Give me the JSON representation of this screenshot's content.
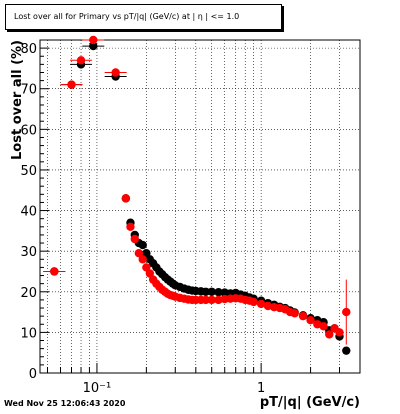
{
  "title": "Lost over all for Primary vs pT/|q| (GeV/c) at | η | <= 1.0",
  "timestamp": "Wed Nov 25 12:06:43 2020",
  "colors": {
    "series_black": "#000000",
    "series_red": "#ff0000",
    "grid": "#000000",
    "frame": "#000000"
  },
  "chart_data": {
    "type": "scatter",
    "xlabel": "pT/|q| (GeV/c)",
    "ylabel": "Lost over all (%)",
    "xscale": "log",
    "xlim": [
      0.045,
      4.0
    ],
    "ylim": [
      0,
      82
    ],
    "xticks": [
      {
        "value": 0.1,
        "label": "10⁻¹"
      },
      {
        "value": 1,
        "label": "1"
      }
    ],
    "yticks": [
      0,
      10,
      20,
      30,
      40,
      50,
      60,
      70,
      80
    ],
    "grid": true,
    "series": [
      {
        "color": "#000000",
        "points": [
          [
            0.055,
            25.0
          ],
          [
            0.07,
            71.0
          ],
          [
            0.08,
            76.0
          ],
          [
            0.095,
            80.5
          ],
          [
            0.13,
            73.0
          ],
          [
            0.15,
            43.0
          ],
          [
            0.16,
            37.0
          ],
          [
            0.17,
            34.0
          ],
          [
            0.18,
            32.0
          ],
          [
            0.19,
            31.5
          ],
          [
            0.2,
            29.5
          ],
          [
            0.21,
            28.0
          ],
          [
            0.22,
            27.0
          ],
          [
            0.23,
            26.0
          ],
          [
            0.24,
            25.0
          ],
          [
            0.25,
            24.3
          ],
          [
            0.26,
            23.6
          ],
          [
            0.27,
            23.0
          ],
          [
            0.28,
            22.5
          ],
          [
            0.29,
            22.0
          ],
          [
            0.3,
            21.6
          ],
          [
            0.32,
            21.2
          ],
          [
            0.34,
            20.8
          ],
          [
            0.36,
            20.5
          ],
          [
            0.38,
            20.3
          ],
          [
            0.4,
            20.2
          ],
          [
            0.43,
            20.1
          ],
          [
            0.46,
            20.0
          ],
          [
            0.5,
            20.0
          ],
          [
            0.55,
            19.9
          ],
          [
            0.6,
            19.8
          ],
          [
            0.65,
            19.6
          ],
          [
            0.7,
            19.7
          ],
          [
            0.75,
            19.3
          ],
          [
            0.8,
            19.0
          ],
          [
            0.85,
            18.6
          ],
          [
            0.9,
            18.3
          ],
          [
            1.0,
            17.8
          ],
          [
            1.1,
            17.2
          ],
          [
            1.2,
            16.8
          ],
          [
            1.3,
            16.3
          ],
          [
            1.4,
            16.0
          ],
          [
            1.5,
            15.4
          ],
          [
            1.6,
            14.9
          ],
          [
            1.8,
            14.2
          ],
          [
            2.0,
            13.5
          ],
          [
            2.2,
            13.0
          ],
          [
            2.4,
            12.5
          ],
          [
            2.6,
            10.5
          ],
          [
            2.8,
            11.0
          ],
          [
            3.0,
            9.0
          ],
          [
            3.3,
            5.5
          ]
        ]
      },
      {
        "color": "#ff0000",
        "points": [
          [
            0.055,
            25.0
          ],
          [
            0.07,
            71.0
          ],
          [
            0.08,
            77.0
          ],
          [
            0.095,
            82.0
          ],
          [
            0.13,
            74.0
          ],
          [
            0.15,
            43.0
          ],
          [
            0.16,
            36.0
          ],
          [
            0.17,
            33.0
          ],
          [
            0.18,
            29.5
          ],
          [
            0.19,
            28.0
          ],
          [
            0.2,
            26.0
          ],
          [
            0.21,
            24.5
          ],
          [
            0.22,
            23.0
          ],
          [
            0.23,
            22.0
          ],
          [
            0.24,
            21.2
          ],
          [
            0.25,
            20.5
          ],
          [
            0.26,
            20.0
          ],
          [
            0.27,
            19.5
          ],
          [
            0.28,
            19.2
          ],
          [
            0.29,
            19.0
          ],
          [
            0.3,
            18.8
          ],
          [
            0.32,
            18.5
          ],
          [
            0.34,
            18.3
          ],
          [
            0.36,
            18.1
          ],
          [
            0.38,
            18.0
          ],
          [
            0.4,
            18.0
          ],
          [
            0.43,
            18.0
          ],
          [
            0.46,
            18.0
          ],
          [
            0.5,
            18.0
          ],
          [
            0.55,
            18.0
          ],
          [
            0.6,
            18.2
          ],
          [
            0.65,
            18.3
          ],
          [
            0.7,
            18.4
          ],
          [
            0.75,
            18.3
          ],
          [
            0.8,
            18.0
          ],
          [
            0.85,
            17.8
          ],
          [
            0.9,
            17.5
          ],
          [
            1.0,
            17.0
          ],
          [
            1.1,
            16.5
          ],
          [
            1.2,
            16.2
          ],
          [
            1.3,
            16.0
          ],
          [
            1.4,
            15.7
          ],
          [
            1.5,
            15.0
          ],
          [
            1.6,
            14.7
          ],
          [
            1.8,
            14.0
          ],
          [
            2.0,
            13.0
          ],
          [
            2.2,
            12.0
          ],
          [
            2.4,
            11.5
          ],
          [
            2.6,
            9.5
          ],
          [
            2.8,
            11.0
          ],
          [
            3.0,
            10.0
          ],
          [
            3.3,
            15.0
          ]
        ]
      }
    ]
  }
}
